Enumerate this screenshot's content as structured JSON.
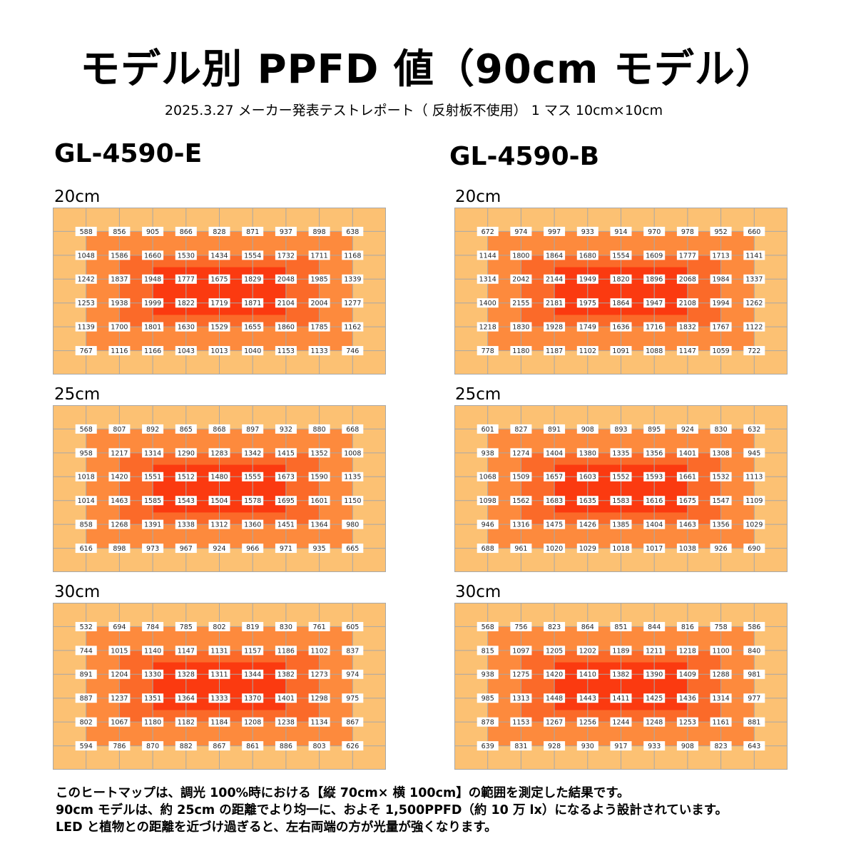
{
  "title": "モデル別 PPFD 値（90cm モデル）",
  "subtitle": "2025.3.27 メーカー発表テストレポート（ 反射板不使用）  1 マス 10cm×10cm",
  "footnote": [
    "このヒートマップは、調光 100%時における【縦 70cm× 横 100cm】の範囲を測定した結果です。",
    "90cm モデルは、約 25cm の距離でより均一に、およそ 1,500PPFD（約 10 万 lx）になるよう設計されています。",
    "LED と植物との距離を近づけ過ぎると、左右両端の方が光量が強くなります。"
  ],
  "colors": {
    "outer": "#fcc173",
    "ring1": "#fd8a3d",
    "ring2": "#fb6a29",
    "core": "#fb3a10",
    "grid": "#a8a8a8",
    "label_bg": "#ffffff"
  },
  "models": [
    {
      "name": "GL-4590-E",
      "heatmaps": [
        {
          "distance": "20cm",
          "chart_data": {
            "type": "heatmap",
            "title": "GL-4590-E 20cm",
            "values": [
              [
                588,
                856,
                905,
                866,
                828,
                871,
                937,
                898,
                638
              ],
              [
                1048,
                1586,
                1660,
                1530,
                1434,
                1554,
                1732,
                1711,
                1168
              ],
              [
                1242,
                1837,
                1948,
                1777,
                1675,
                1829,
                2048,
                1985,
                1339
              ],
              [
                1253,
                1938,
                1999,
                1822,
                1719,
                1871,
                2104,
                2004,
                1277
              ],
              [
                1139,
                1700,
                1801,
                1630,
                1529,
                1655,
                1860,
                1785,
                1162
              ],
              [
                767,
                1116,
                1166,
                1043,
                1013,
                1040,
                1153,
                1133,
                746
              ]
            ]
          }
        },
        {
          "distance": "25cm",
          "chart_data": {
            "type": "heatmap",
            "title": "GL-4590-E 25cm",
            "values": [
              [
                568,
                807,
                892,
                865,
                868,
                897,
                932,
                880,
                668
              ],
              [
                958,
                1217,
                1314,
                1290,
                1283,
                1342,
                1415,
                1352,
                1008
              ],
              [
                1018,
                1420,
                1551,
                1512,
                1480,
                1555,
                1673,
                1590,
                1135
              ],
              [
                1014,
                1463,
                1585,
                1543,
                1504,
                1578,
                1695,
                1601,
                1150
              ],
              [
                858,
                1268,
                1391,
                1338,
                1312,
                1360,
                1451,
                1364,
                980
              ],
              [
                616,
                898,
                973,
                967,
                924,
                966,
                971,
                935,
                665
              ]
            ]
          }
        },
        {
          "distance": "30cm",
          "chart_data": {
            "type": "heatmap",
            "title": "GL-4590-E 30cm",
            "values": [
              [
                532,
                694,
                784,
                785,
                802,
                819,
                830,
                761,
                605
              ],
              [
                744,
                1015,
                1140,
                1147,
                1131,
                1157,
                1186,
                1102,
                837
              ],
              [
                891,
                1204,
                1330,
                1328,
                1311,
                1344,
                1382,
                1273,
                974
              ],
              [
                887,
                1237,
                1351,
                1364,
                1333,
                1370,
                1401,
                1298,
                975
              ],
              [
                802,
                1067,
                1180,
                1182,
                1184,
                1208,
                1238,
                1134,
                867
              ],
              [
                594,
                786,
                870,
                882,
                867,
                861,
                886,
                803,
                626
              ]
            ]
          }
        }
      ]
    },
    {
      "name": "GL-4590-B",
      "heatmaps": [
        {
          "distance": "20cm",
          "chart_data": {
            "type": "heatmap",
            "title": "GL-4590-B 20cm",
            "values": [
              [
                672,
                974,
                997,
                933,
                914,
                970,
                978,
                952,
                660
              ],
              [
                1144,
                1800,
                1864,
                1680,
                1554,
                1609,
                1777,
                1713,
                1141
              ],
              [
                1314,
                2042,
                2144,
                1949,
                1820,
                1896,
                2068,
                1984,
                1337
              ],
              [
                1400,
                2155,
                2181,
                1975,
                1864,
                1947,
                2108,
                1994,
                1262
              ],
              [
                1218,
                1830,
                1928,
                1749,
                1636,
                1716,
                1832,
                1767,
                1122
              ],
              [
                778,
                1180,
                1187,
                1102,
                1091,
                1088,
                1147,
                1059,
                722
              ]
            ]
          }
        },
        {
          "distance": "25cm",
          "chart_data": {
            "type": "heatmap",
            "title": "GL-4590-B 25cm",
            "values": [
              [
                601,
                827,
                891,
                908,
                893,
                895,
                924,
                830,
                632
              ],
              [
                938,
                1274,
                1404,
                1380,
                1335,
                1356,
                1401,
                1308,
                945
              ],
              [
                1068,
                1509,
                1657,
                1603,
                1552,
                1593,
                1661,
                1532,
                1113
              ],
              [
                1098,
                1562,
                1683,
                1635,
                1583,
                1616,
                1675,
                1547,
                1109
              ],
              [
                946,
                1316,
                1475,
                1426,
                1385,
                1404,
                1463,
                1356,
                1029
              ],
              [
                688,
                961,
                1020,
                1029,
                1018,
                1017,
                1038,
                926,
                690
              ]
            ]
          }
        },
        {
          "distance": "30cm",
          "chart_data": {
            "type": "heatmap",
            "title": "GL-4590-B 30cm",
            "values": [
              [
                568,
                756,
                823,
                864,
                851,
                844,
                816,
                758,
                586
              ],
              [
                815,
                1097,
                1205,
                1202,
                1189,
                1211,
                1218,
                1100,
                840
              ],
              [
                938,
                1275,
                1420,
                1410,
                1382,
                1390,
                1409,
                1288,
                981
              ],
              [
                985,
                1313,
                1448,
                1443,
                1411,
                1425,
                1436,
                1314,
                977
              ],
              [
                878,
                1153,
                1267,
                1256,
                1244,
                1248,
                1253,
                1161,
                881
              ],
              [
                639,
                831,
                928,
                930,
                917,
                933,
                908,
                823,
                643
              ]
            ]
          }
        }
      ]
    }
  ]
}
